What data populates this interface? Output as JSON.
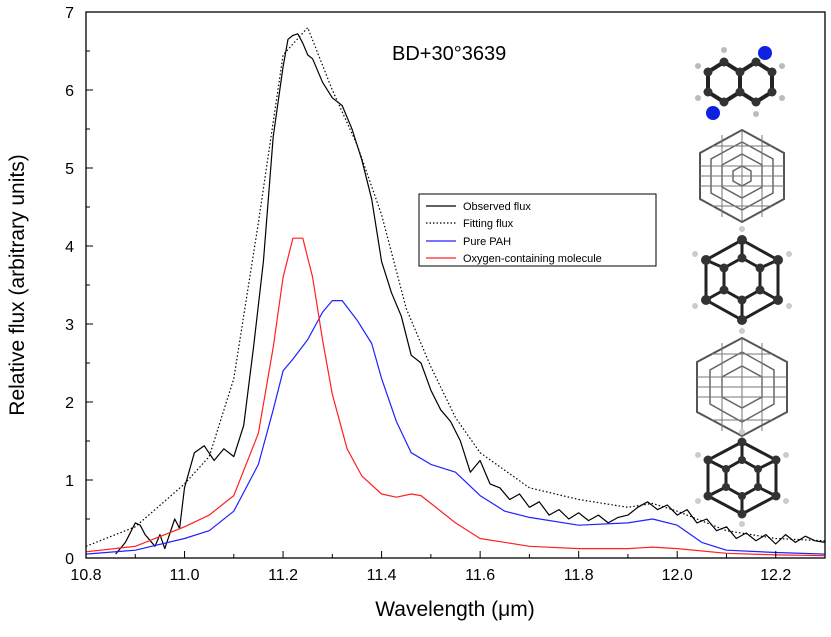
{
  "chart_data": {
    "type": "line",
    "title": "",
    "annotation": "BD+30°3639",
    "xlabel": "Wavelength (μm)",
    "ylabel": "Relative flux (arbitrary units)",
    "xlim": [
      10.8,
      12.3
    ],
    "ylim": [
      0,
      7
    ],
    "xticks": [
      10.8,
      11.0,
      11.2,
      11.4,
      11.6,
      11.8,
      12.0,
      12.2
    ],
    "xtick_labels": [
      "10.8",
      "11.0",
      "11.2",
      "11.4",
      "11.6",
      "11.8",
      "12.0",
      "12.2"
    ],
    "yticks": [
      0,
      1,
      2,
      3,
      4,
      5,
      6,
      7
    ],
    "ytick_labels": [
      "0",
      "1",
      "2",
      "3",
      "4",
      "5",
      "6",
      "7"
    ],
    "legend_position": "center-right",
    "series": [
      {
        "name": "Observed flux",
        "color": "#000000",
        "style": "solid",
        "x": [
          10.86,
          10.88,
          10.9,
          10.91,
          10.92,
          10.94,
          10.95,
          10.96,
          10.98,
          10.99,
          11.0,
          11.02,
          11.04,
          11.06,
          11.08,
          11.1,
          11.12,
          11.14,
          11.16,
          11.18,
          11.2,
          11.21,
          11.22,
          11.23,
          11.24,
          11.25,
          11.26,
          11.28,
          11.3,
          11.32,
          11.34,
          11.36,
          11.38,
          11.4,
          11.42,
          11.44,
          11.46,
          11.48,
          11.5,
          11.52,
          11.54,
          11.56,
          11.58,
          11.6,
          11.62,
          11.64,
          11.66,
          11.68,
          11.7,
          11.72,
          11.74,
          11.76,
          11.78,
          11.8,
          11.82,
          11.84,
          11.86,
          11.88,
          11.9,
          11.92,
          11.94,
          11.96,
          11.98,
          12.0,
          12.02,
          12.04,
          12.06,
          12.08,
          12.1,
          12.12,
          12.14,
          12.16,
          12.18,
          12.2,
          12.22,
          12.24,
          12.26,
          12.28,
          12.3
        ],
        "values": [
          0.05,
          0.2,
          0.45,
          0.42,
          0.3,
          0.15,
          0.3,
          0.12,
          0.5,
          0.38,
          0.9,
          1.35,
          1.44,
          1.25,
          1.4,
          1.3,
          1.7,
          2.7,
          3.8,
          5.4,
          6.3,
          6.65,
          6.7,
          6.72,
          6.6,
          6.45,
          6.4,
          6.1,
          5.9,
          5.8,
          5.5,
          5.1,
          4.6,
          3.8,
          3.4,
          3.1,
          2.6,
          2.5,
          2.15,
          1.9,
          1.75,
          1.5,
          1.1,
          1.25,
          0.95,
          0.9,
          0.75,
          0.82,
          0.65,
          0.72,
          0.55,
          0.62,
          0.5,
          0.58,
          0.48,
          0.55,
          0.45,
          0.52,
          0.55,
          0.65,
          0.72,
          0.62,
          0.68,
          0.55,
          0.62,
          0.45,
          0.5,
          0.35,
          0.4,
          0.25,
          0.32,
          0.22,
          0.3,
          0.18,
          0.3,
          0.2,
          0.28,
          0.22,
          0.2
        ]
      },
      {
        "name": "Fitting flux",
        "color": "#000000",
        "style": "dotted",
        "x": [
          10.8,
          10.9,
          11.0,
          11.05,
          11.1,
          11.15,
          11.2,
          11.25,
          11.3,
          11.35,
          11.4,
          11.45,
          11.5,
          11.55,
          11.6,
          11.7,
          11.8,
          11.9,
          11.95,
          12.0,
          12.1,
          12.2,
          12.3
        ],
        "values": [
          0.15,
          0.4,
          0.95,
          1.3,
          2.3,
          4.3,
          6.45,
          6.8,
          6.0,
          5.3,
          4.4,
          3.2,
          2.45,
          1.8,
          1.35,
          0.9,
          0.75,
          0.65,
          0.7,
          0.6,
          0.35,
          0.25,
          0.22
        ]
      },
      {
        "name": "Pure PAH",
        "color": "#2020ff",
        "style": "solid",
        "x": [
          10.8,
          10.9,
          11.0,
          11.05,
          11.1,
          11.15,
          11.18,
          11.2,
          11.22,
          11.25,
          11.28,
          11.3,
          11.32,
          11.35,
          11.38,
          11.4,
          11.43,
          11.46,
          11.5,
          11.55,
          11.6,
          11.65,
          11.7,
          11.8,
          11.9,
          11.95,
          12.0,
          12.05,
          12.1,
          12.2,
          12.3
        ],
        "values": [
          0.05,
          0.1,
          0.25,
          0.35,
          0.6,
          1.2,
          1.9,
          2.4,
          2.55,
          2.8,
          3.15,
          3.3,
          3.3,
          3.05,
          2.75,
          2.3,
          1.75,
          1.35,
          1.2,
          1.1,
          0.8,
          0.6,
          0.52,
          0.42,
          0.45,
          0.5,
          0.42,
          0.2,
          0.1,
          0.07,
          0.05
        ]
      },
      {
        "name": "Oxygen-containing molecule",
        "color": "#ff2020",
        "style": "solid",
        "x": [
          10.8,
          10.9,
          11.0,
          11.05,
          11.1,
          11.15,
          11.18,
          11.2,
          11.22,
          11.24,
          11.26,
          11.28,
          11.3,
          11.33,
          11.36,
          11.4,
          11.43,
          11.46,
          11.48,
          11.5,
          11.55,
          11.6,
          11.7,
          11.8,
          11.9,
          11.95,
          12.0,
          12.1,
          12.2,
          12.3
        ],
        "values": [
          0.08,
          0.15,
          0.4,
          0.55,
          0.8,
          1.6,
          2.7,
          3.6,
          4.1,
          4.1,
          3.6,
          2.8,
          2.1,
          1.4,
          1.05,
          0.82,
          0.78,
          0.82,
          0.8,
          0.7,
          0.45,
          0.25,
          0.15,
          0.12,
          0.12,
          0.14,
          0.12,
          0.06,
          0.04,
          0.03
        ]
      }
    ],
    "molecule_icons": [
      "molecule-structure-1",
      "molecule-structure-2",
      "molecule-structure-3",
      "molecule-structure-4",
      "molecule-structure-5"
    ]
  }
}
